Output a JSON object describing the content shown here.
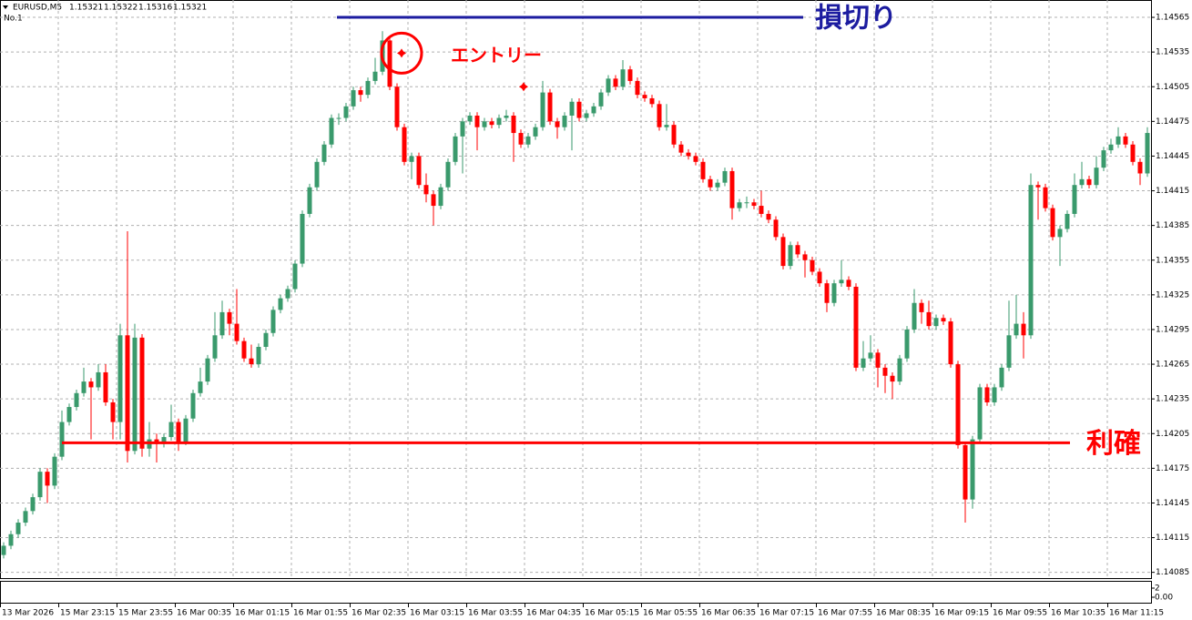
{
  "chart_data": {
    "type": "candlestick",
    "symbol": "EURUSD,M5",
    "header_prices": [
      1.15321,
      1.15322,
      1.15316,
      1.15321
    ],
    "sub_label": "No.1",
    "bull_color": "#3a9a6c",
    "bear_color": "#ff0000",
    "grid": true,
    "ylim": [
      1.1408,
      1.1458
    ],
    "yticks": [
      1.14565,
      1.14535,
      1.14505,
      1.14475,
      1.14445,
      1.14415,
      1.14385,
      1.14355,
      1.14325,
      1.14295,
      1.14265,
      1.14235,
      1.14205,
      1.14175,
      1.14145,
      1.14115,
      1.14085
    ],
    "xticks": [
      "13 Mar 2026",
      "15 Mar 23:15",
      "15 Mar 23:55",
      "16 Mar 00:35",
      "16 Mar 01:15",
      "16 Mar 01:55",
      "16 Mar 02:35",
      "16 Mar 03:15",
      "16 Mar 03:55",
      "16 Mar 04:35",
      "16 Mar 05:15",
      "16 Mar 05:55",
      "16 Mar 06:35",
      "16 Mar 07:15",
      "16 Mar 07:55",
      "16 Mar 08:35",
      "16 Mar 09:15",
      "16 Mar 09:55",
      "16 Mar 10:35",
      "16 Mar 11:15"
    ],
    "indicator_ticks": [
      2,
      {
        "value": 0,
        "label": "0.00"
      }
    ],
    "lines": [
      {
        "label": "損切り",
        "value": 1.14565,
        "color": "#1c1ca0"
      },
      {
        "label": "利確",
        "value": 1.14197,
        "color": "#ff0000"
      }
    ],
    "entry_label": "エントリー",
    "markers": [
      {
        "value": 1.14534
      },
      {
        "value": 1.14505
      }
    ],
    "candles": [
      [
        1.141,
        1.14111,
        1.14097,
        1.14108
      ],
      [
        1.14108,
        1.14121,
        1.14105,
        1.14118
      ],
      [
        1.14118,
        1.14131,
        1.14115,
        1.14128
      ],
      [
        1.14128,
        1.14141,
        1.14125,
        1.14138
      ],
      [
        1.14138,
        1.14153,
        1.14135,
        1.1415
      ],
      [
        1.1415,
        1.14175,
        1.14147,
        1.14172
      ],
      [
        1.14172,
        1.14175,
        1.14145,
        1.1416
      ],
      [
        1.1416,
        1.14188,
        1.14157,
        1.14185
      ],
      [
        1.14185,
        1.14225,
        1.14182,
        1.14215
      ],
      [
        1.14215,
        1.14231,
        1.14212,
        1.14228
      ],
      [
        1.14228,
        1.14243,
        1.14225,
        1.1424
      ],
      [
        1.1424,
        1.14262,
        1.14237,
        1.1425
      ],
      [
        1.1425,
        1.14253,
        1.142,
        1.14245
      ],
      [
        1.14245,
        1.14265,
        1.14242,
        1.14258
      ],
      [
        1.14258,
        1.14265,
        1.14229,
        1.14232
      ],
      [
        1.14232,
        1.14235,
        1.142,
        1.14215
      ],
      [
        1.14215,
        1.143,
        1.142,
        1.1429
      ],
      [
        1.1429,
        1.1438,
        1.1418,
        1.1419
      ],
      [
        1.1419,
        1.143,
        1.14187,
        1.14288
      ],
      [
        1.14288,
        1.14291,
        1.14185,
        1.14192
      ],
      [
        1.14192,
        1.14215,
        1.14185,
        1.142
      ],
      [
        1.142,
        1.14205,
        1.1418,
        1.14196
      ],
      [
        1.14196,
        1.14205,
        1.14193,
        1.14202
      ],
      [
        1.14202,
        1.1423,
        1.14199,
        1.14215
      ],
      [
        1.14215,
        1.14218,
        1.1419,
        1.14198
      ],
      [
        1.14198,
        1.14221,
        1.14195,
        1.14218
      ],
      [
        1.14218,
        1.14243,
        1.14215,
        1.1424
      ],
      [
        1.1424,
        1.14262,
        1.14237,
        1.1425
      ],
      [
        1.1425,
        1.14273,
        1.14247,
        1.1427
      ],
      [
        1.1427,
        1.1431,
        1.14267,
        1.1429
      ],
      [
        1.1429,
        1.1432,
        1.14287,
        1.1431
      ],
      [
        1.1431,
        1.14313,
        1.1429,
        1.143
      ],
      [
        1.143,
        1.1433,
        1.14282,
        1.14285
      ],
      [
        1.14285,
        1.14288,
        1.14267,
        1.1427
      ],
      [
        1.1427,
        1.14282,
        1.14262,
        1.14265
      ],
      [
        1.14265,
        1.14283,
        1.14262,
        1.1428
      ],
      [
        1.1428,
        1.14295,
        1.14277,
        1.14292
      ],
      [
        1.14292,
        1.14315,
        1.14289,
        1.14312
      ],
      [
        1.14312,
        1.14325,
        1.14309,
        1.14322
      ],
      [
        1.14322,
        1.14333,
        1.14319,
        1.1433
      ],
      [
        1.1433,
        1.14355,
        1.14327,
        1.14352
      ],
      [
        1.14352,
        1.14398,
        1.14349,
        1.14395
      ],
      [
        1.14395,
        1.14421,
        1.14392,
        1.14418
      ],
      [
        1.14418,
        1.14443,
        1.14415,
        1.1444
      ],
      [
        1.1444,
        1.14458,
        1.14437,
        1.14455
      ],
      [
        1.14455,
        1.14481,
        1.14452,
        1.14478
      ],
      [
        1.14478,
        1.14482,
        1.14472,
        1.14478
      ],
      [
        1.14478,
        1.14491,
        1.14475,
        1.14488
      ],
      [
        1.14488,
        1.14505,
        1.14485,
        1.14502
      ],
      [
        1.14502,
        1.14505,
        1.14492,
        1.14498
      ],
      [
        1.14498,
        1.14513,
        1.14495,
        1.1451
      ],
      [
        1.1451,
        1.1453,
        1.14507,
        1.14518
      ],
      [
        1.14518,
        1.14553,
        1.14515,
        1.14545
      ],
      [
        1.14545,
        1.14548,
        1.14502,
        1.14505
      ],
      [
        1.14505,
        1.14508,
        1.14467,
        1.1447
      ],
      [
        1.1447,
        1.14473,
        1.14437,
        1.1444
      ],
      [
        1.1444,
        1.14448,
        1.14425,
        1.14445
      ],
      [
        1.14445,
        1.14448,
        1.14417,
        1.1442
      ],
      [
        1.1442,
        1.1443,
        1.14405,
        1.14412
      ],
      [
        1.14412,
        1.14415,
        1.14385,
        1.14402
      ],
      [
        1.14402,
        1.14421,
        1.14399,
        1.14418
      ],
      [
        1.14418,
        1.14443,
        1.14415,
        1.1444
      ],
      [
        1.1444,
        1.14465,
        1.14437,
        1.14462
      ],
      [
        1.14462,
        1.14478,
        1.1443,
        1.14475
      ],
      [
        1.14475,
        1.14483,
        1.14472,
        1.1448
      ],
      [
        1.1448,
        1.14483,
        1.1445,
        1.1447
      ],
      [
        1.1447,
        1.14478,
        1.14467,
        1.14475
      ],
      [
        1.14475,
        1.14478,
        1.14469,
        1.14472
      ],
      [
        1.14472,
        1.14481,
        1.14469,
        1.14478
      ],
      [
        1.14478,
        1.14485,
        1.14475,
        1.1448
      ],
      [
        1.1448,
        1.14483,
        1.1444,
        1.14465
      ],
      [
        1.14465,
        1.14468,
        1.14452,
        1.14455
      ],
      [
        1.14455,
        1.14465,
        1.14452,
        1.14462
      ],
      [
        1.14462,
        1.14473,
        1.14459,
        1.1447
      ],
      [
        1.1447,
        1.1451,
        1.14467,
        1.145
      ],
      [
        1.145,
        1.14503,
        1.14472,
        1.14475
      ],
      [
        1.14475,
        1.14478,
        1.1446,
        1.1447
      ],
      [
        1.1447,
        1.14483,
        1.14467,
        1.1448
      ],
      [
        1.1448,
        1.14495,
        1.1445,
        1.14492
      ],
      [
        1.14492,
        1.14495,
        1.14475,
        1.14478
      ],
      [
        1.14478,
        1.14485,
        1.14475,
        1.14482
      ],
      [
        1.14482,
        1.14491,
        1.14479,
        1.14488
      ],
      [
        1.14488,
        1.14503,
        1.14485,
        1.145
      ],
      [
        1.145,
        1.14515,
        1.14497,
        1.14512
      ],
      [
        1.14512,
        1.14515,
        1.14502,
        1.14505
      ],
      [
        1.14505,
        1.14528,
        1.14502,
        1.1452
      ],
      [
        1.1452,
        1.14523,
        1.14507,
        1.1451
      ],
      [
        1.1451,
        1.14513,
        1.14495,
        1.14498
      ],
      [
        1.14498,
        1.14501,
        1.14492,
        1.14495
      ],
      [
        1.14495,
        1.14498,
        1.14487,
        1.1449
      ],
      [
        1.1449,
        1.14493,
        1.14467,
        1.1447
      ],
      [
        1.1447,
        1.1449,
        1.14467,
        1.14472
      ],
      [
        1.14472,
        1.14475,
        1.14452,
        1.14455
      ],
      [
        1.14455,
        1.14458,
        1.14445,
        1.14448
      ],
      [
        1.14448,
        1.14451,
        1.14442,
        1.14445
      ],
      [
        1.14445,
        1.14448,
        1.14437,
        1.1444
      ],
      [
        1.1444,
        1.14443,
        1.14422,
        1.14425
      ],
      [
        1.14425,
        1.14428,
        1.14415,
        1.14418
      ],
      [
        1.14418,
        1.14425,
        1.14415,
        1.14422
      ],
      [
        1.14422,
        1.14435,
        1.14419,
        1.14432
      ],
      [
        1.14432,
        1.14435,
        1.1439,
        1.144
      ],
      [
        1.144,
        1.14408,
        1.14397,
        1.14405
      ],
      [
        1.14405,
        1.1441,
        1.144,
        1.14405
      ],
      [
        1.14405,
        1.14408,
        1.14399,
        1.14402
      ],
      [
        1.14402,
        1.14415,
        1.14392,
        1.14395
      ],
      [
        1.14395,
        1.14398,
        1.14387,
        1.1439
      ],
      [
        1.1439,
        1.14393,
        1.14372,
        1.14375
      ],
      [
        1.14375,
        1.14378,
        1.14347,
        1.1435
      ],
      [
        1.1435,
        1.14371,
        1.14347,
        1.14368
      ],
      [
        1.14368,
        1.14371,
        1.14357,
        1.1436
      ],
      [
        1.1436,
        1.14363,
        1.1434,
        1.14355
      ],
      [
        1.14355,
        1.14358,
        1.14342,
        1.14345
      ],
      [
        1.14345,
        1.14348,
        1.14332,
        1.14335
      ],
      [
        1.14335,
        1.14338,
        1.1431,
        1.14318
      ],
      [
        1.14318,
        1.14338,
        1.14315,
        1.14335
      ],
      [
        1.14335,
        1.14355,
        1.14332,
        1.14338
      ],
      [
        1.14338,
        1.14341,
        1.14329,
        1.14332
      ],
      [
        1.14332,
        1.14335,
        1.14259,
        1.14262
      ],
      [
        1.14262,
        1.14285,
        1.14259,
        1.1427
      ],
      [
        1.1427,
        1.1429,
        1.14267,
        1.14275
      ],
      [
        1.14275,
        1.14278,
        1.14245,
        1.14262
      ],
      [
        1.14262,
        1.14265,
        1.1424,
        1.14255
      ],
      [
        1.14255,
        1.14258,
        1.14235,
        1.1425
      ],
      [
        1.1425,
        1.14273,
        1.14247,
        1.1427
      ],
      [
        1.1427,
        1.14298,
        1.14267,
        1.14295
      ],
      [
        1.14295,
        1.1433,
        1.14292,
        1.14318
      ],
      [
        1.14318,
        1.14321,
        1.143,
        1.1431
      ],
      [
        1.1431,
        1.1432,
        1.14295,
        1.14298
      ],
      [
        1.14298,
        1.14308,
        1.14295,
        1.14305
      ],
      [
        1.14305,
        1.14308,
        1.14299,
        1.14302
      ],
      [
        1.14302,
        1.14305,
        1.14262,
        1.14265
      ],
      [
        1.14265,
        1.14268,
        1.14192,
        1.14195
      ],
      [
        1.14195,
        1.14198,
        1.14128,
        1.14148
      ],
      [
        1.14148,
        1.14203,
        1.1414,
        1.142
      ],
      [
        1.142,
        1.14248,
        1.14197,
        1.14245
      ],
      [
        1.14245,
        1.14248,
        1.14229,
        1.14232
      ],
      [
        1.14232,
        1.14248,
        1.14229,
        1.14245
      ],
      [
        1.14245,
        1.14265,
        1.14242,
        1.14262
      ],
      [
        1.14262,
        1.1432,
        1.14259,
        1.1429
      ],
      [
        1.1429,
        1.14325,
        1.14287,
        1.143
      ],
      [
        1.143,
        1.1431,
        1.1427,
        1.1429
      ],
      [
        1.1429,
        1.1443,
        1.14287,
        1.1442
      ],
      [
        1.1442,
        1.14423,
        1.1439,
        1.14418
      ],
      [
        1.14418,
        1.14421,
        1.14397,
        1.144
      ],
      [
        1.144,
        1.14403,
        1.14372,
        1.14375
      ],
      [
        1.14375,
        1.14385,
        1.1435,
        1.14382
      ],
      [
        1.14382,
        1.14398,
        1.14379,
        1.14395
      ],
      [
        1.14395,
        1.1443,
        1.14392,
        1.1442
      ],
      [
        1.1442,
        1.1444,
        1.14417,
        1.14425
      ],
      [
        1.14425,
        1.14428,
        1.14417,
        1.1442
      ],
      [
        1.1442,
        1.14445,
        1.14417,
        1.14435
      ],
      [
        1.14435,
        1.14453,
        1.14432,
        1.1445
      ],
      [
        1.1445,
        1.1446,
        1.14447,
        1.14455
      ],
      [
        1.14455,
        1.1447,
        1.14452,
        1.14462
      ],
      [
        1.14462,
        1.14465,
        1.14452,
        1.14455
      ],
      [
        1.14455,
        1.14458,
        1.14437,
        1.1444
      ],
      [
        1.1444,
        1.14443,
        1.1442,
        1.1443
      ],
      [
        1.1443,
        1.1447,
        1.14427,
        1.14465
      ]
    ]
  }
}
